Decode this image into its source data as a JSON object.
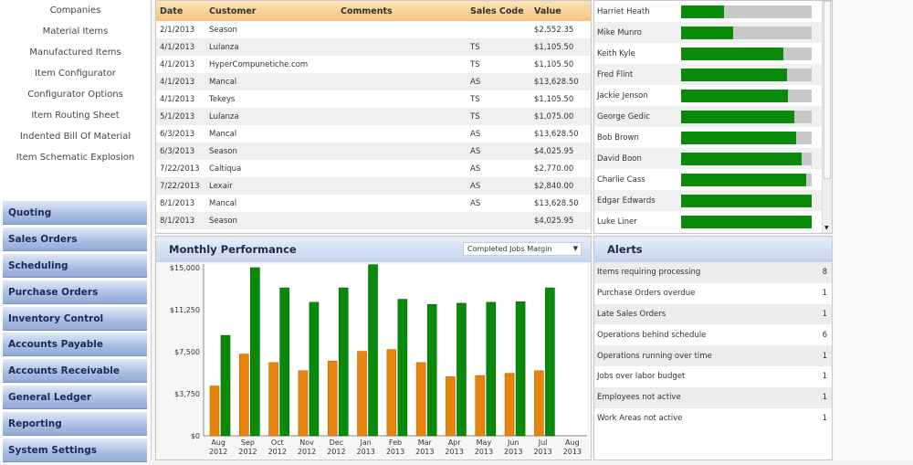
{
  "sidebar": {
    "sub_items": [
      "Companies",
      "Material Items",
      "Manufactured Items",
      "Item Configurator",
      "Configurator Options",
      "Item Routing Sheet",
      "Indented Bill Of Material",
      "Item Schematic Explosion"
    ],
    "modules": [
      "Quoting",
      "Sales Orders",
      "Scheduling",
      "Purchase Orders",
      "Inventory Control",
      "Accounts Payable",
      "Accounts Receivable",
      "General Ledger",
      "Reporting",
      "System Settings"
    ]
  },
  "grid": {
    "headers": [
      "Date",
      "Customer",
      "Comments",
      "Sales Code",
      "Value"
    ],
    "rows": [
      [
        "2/1/2013",
        "Season",
        "",
        "",
        "$2,552.35"
      ],
      [
        "4/1/2013",
        "Lulanza",
        "",
        "TS",
        "$1,105.50"
      ],
      [
        "4/1/2013",
        "HyperCompunetiche.com",
        "",
        "TS",
        "$1,105.50"
      ],
      [
        "4/1/2013",
        "Mancal",
        "",
        "AS",
        "$13,628.50"
      ],
      [
        "4/1/2013",
        "Tekeys",
        "",
        "TS",
        "$1,105.50"
      ],
      [
        "5/1/2013",
        "Lulanza",
        "",
        "TS",
        "$1,075.00"
      ],
      [
        "6/3/2013",
        "Mancal",
        "",
        "AS",
        "$13,628.50"
      ],
      [
        "6/3/2013",
        "Season",
        "",
        "AS",
        "$4,025.95"
      ],
      [
        "7/22/2013",
        "Caltiqua",
        "",
        "AS",
        "$2,770.00"
      ],
      [
        "7/22/2013",
        "Lexair",
        "",
        "AS",
        "$2,840.00"
      ],
      [
        "8/1/2013",
        "Mancal",
        "",
        "AS",
        "$13,628.50"
      ],
      [
        "8/1/2013",
        "Season",
        "",
        "",
        "$4,025.95"
      ]
    ]
  },
  "performance": {
    "rows": [
      {
        "name": "Harriet Heath",
        "progress": 0.33
      },
      {
        "name": "Mike Munro",
        "progress": 0.4
      },
      {
        "name": "Keith Kyle",
        "progress": 0.78
      },
      {
        "name": "Fred Flint",
        "progress": 0.81
      },
      {
        "name": "Jackie Jenson",
        "progress": 0.82
      },
      {
        "name": "George Gedic",
        "progress": 0.87
      },
      {
        "name": "Bob Brown",
        "progress": 0.88
      },
      {
        "name": "David Boon",
        "progress": 0.92
      },
      {
        "name": "Charlie Cass",
        "progress": 0.96
      },
      {
        "name": "Edgar Edwards",
        "progress": 1.0
      },
      {
        "name": "Luke Liner",
        "progress": 1.0
      }
    ]
  },
  "monthly": {
    "title": "Monthly Performance",
    "selector": "Completed Jobs Margin"
  },
  "alerts": {
    "title": "Alerts",
    "rows": [
      {
        "label": "Items requiring processing",
        "count": "8"
      },
      {
        "label": "Purchase Orders overdue",
        "count": "1"
      },
      {
        "label": "Late Sales Orders",
        "count": "1"
      },
      {
        "label": "Operations behind schedule",
        "count": "6"
      },
      {
        "label": "Operations running over time",
        "count": "1"
      },
      {
        "label": "Jobs over labor budget",
        "count": "1"
      },
      {
        "label": "Employees not active",
        "count": "1"
      },
      {
        "label": "Work Areas not active",
        "count": "1"
      }
    ]
  },
  "chart_data": {
    "type": "bar",
    "title": "Monthly Performance",
    "categories": [
      [
        "Aug",
        "2012"
      ],
      [
        "Sep",
        "2012"
      ],
      [
        "Oct",
        "2012"
      ],
      [
        "Nov",
        "2012"
      ],
      [
        "Dec",
        "2012"
      ],
      [
        "Jan",
        "2013"
      ],
      [
        "Feb",
        "2013"
      ],
      [
        "Mar",
        "2013"
      ],
      [
        "Apr",
        "2013"
      ],
      [
        "May",
        "2013"
      ],
      [
        "Jun",
        "2013"
      ],
      [
        "Jul",
        "2013"
      ],
      [
        "Aug",
        "2013"
      ]
    ],
    "series": [
      {
        "name": "orange",
        "color": "#e8850f",
        "values": [
          4435,
          7285,
          6532,
          5806,
          6667,
          7527,
          7688,
          6532,
          5269,
          5376,
          5565,
          5806,
          null
        ]
      },
      {
        "name": "green",
        "color": "#0a8a0a",
        "values": [
          8952,
          15000,
          13199,
          11909,
          13199,
          15269,
          12177,
          11720,
          11828,
          11909,
          11962,
          13199,
          null
        ]
      }
    ],
    "yticks": [
      0,
      3750,
      7500,
      11250,
      15000
    ],
    "ytick_labels": [
      "$0",
      "$3,750",
      "$7,500",
      "$11,250",
      "$15,000"
    ],
    "ylim": [
      0,
      15000
    ],
    "grid": false
  }
}
